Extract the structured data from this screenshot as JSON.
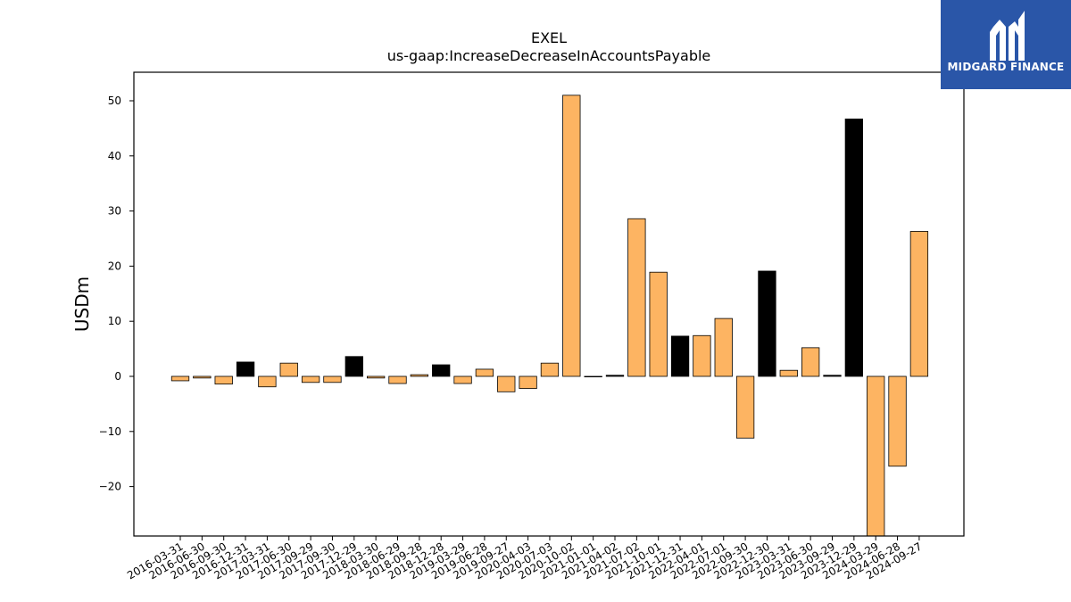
{
  "brand": {
    "name": "MIDGARD FINANCE",
    "bg_color": "#2a56a8",
    "icon": "midgard-logo-icon"
  },
  "chart_data": {
    "type": "bar",
    "title": "EXEL",
    "subtitle": "us-gaap:IncreaseDecreaseInAccountsPayable",
    "xlabel": "",
    "ylabel": "USDm",
    "ylim": [
      -29,
      55
    ],
    "yticks": [
      -20,
      -10,
      0,
      10,
      20,
      30,
      40,
      50
    ],
    "ytick_labels": [
      "−20",
      "−10",
      "0",
      "10",
      "20",
      "30",
      "40",
      "50"
    ],
    "grid": false,
    "colors": {
      "default": "#fdb462",
      "q4": "#000000",
      "edge": "#000000"
    },
    "categories": [
      "2016-03-31",
      "2016-06-30",
      "2016-09-30",
      "2016-12-31",
      "2017-03-31",
      "2017-06-30",
      "2017-09-29",
      "2017-09-30",
      "2017-12-29",
      "2018-03-30",
      "2018-06-29",
      "2018-09-28",
      "2018-12-28",
      "2019-03-29",
      "2019-06-28",
      "2019-09-27",
      "2020-04-03",
      "2020-07-03",
      "2020-10-02",
      "2021-01-01",
      "2021-04-02",
      "2021-07-02",
      "2021-10-01",
      "2021-12-31",
      "2022-04-01",
      "2022-07-01",
      "2022-09-30",
      "2022-12-30",
      "2023-03-31",
      "2023-06-30",
      "2023-09-29",
      "2023-12-29",
      "2024-03-29",
      "2024-06-28",
      "2024-09-27"
    ],
    "values": [
      -0.8,
      -0.3,
      -1.4,
      2.6,
      -1.9,
      2.4,
      -1.1,
      -1.1,
      3.6,
      -0.3,
      -1.3,
      0.3,
      2.1,
      -1.3,
      1.3,
      -2.8,
      -2.2,
      2.4,
      51.0,
      -0.1,
      0.2,
      28.6,
      18.9,
      7.3,
      7.4,
      10.5,
      -11.2,
      19.1,
      1.1,
      5.2,
      0.2,
      46.7,
      -29.0,
      -16.3,
      26.3
    ],
    "highlight": [
      "orange",
      "orange",
      "orange",
      "black",
      "orange",
      "orange",
      "orange",
      "orange",
      "black",
      "orange",
      "orange",
      "orange",
      "black",
      "orange",
      "orange",
      "orange",
      "orange",
      "orange",
      "orange",
      "orange",
      "black",
      "orange",
      "orange",
      "black",
      "orange",
      "orange",
      "orange",
      "black",
      "orange",
      "orange",
      "black",
      "black",
      "orange",
      "orange",
      "orange"
    ]
  }
}
